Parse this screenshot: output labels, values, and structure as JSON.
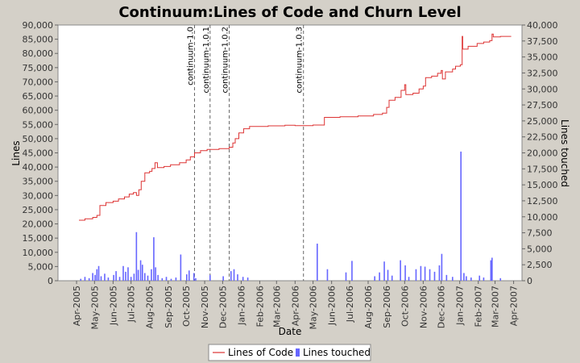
{
  "chart_data": {
    "type": "line+bar",
    "title": "Continuum:Lines of Code and Churn Level",
    "xlabel": "Date",
    "ylabel_left": "Lines",
    "ylabel_right": "Lines touched",
    "x_range": [
      "2005-03-01",
      "2007-04-15"
    ],
    "ylim_left": [
      0,
      90000
    ],
    "ylim_right": [
      0,
      40000
    ],
    "yticks_left": [
      "0",
      "5,000",
      "10,000",
      "15,000",
      "20,000",
      "25,000",
      "30,000",
      "35,000",
      "40,000",
      "45,000",
      "50,000",
      "55,000",
      "60,000",
      "65,000",
      "70,000",
      "75,000",
      "80,000",
      "85,000",
      "90,000"
    ],
    "yticks_right": [
      "0",
      "2,500",
      "5,000",
      "7,500",
      "10,000",
      "12,500",
      "15,000",
      "17,500",
      "20,000",
      "22,500",
      "25,000",
      "27,500",
      "30,000",
      "32,500",
      "35,000",
      "37,500",
      "40,000"
    ],
    "xticks": [
      {
        "date": "2005-04-01",
        "label": "Apr-2005"
      },
      {
        "date": "2005-05-01",
        "label": "May-2005"
      },
      {
        "date": "2005-06-01",
        "label": "Jun-2005"
      },
      {
        "date": "2005-07-01",
        "label": "Jul-2005"
      },
      {
        "date": "2005-08-01",
        "label": "Aug-2005"
      },
      {
        "date": "2005-09-01",
        "label": "Sep-2005"
      },
      {
        "date": "2005-10-01",
        "label": "Oct-2005"
      },
      {
        "date": "2005-11-01",
        "label": "Nov-2005"
      },
      {
        "date": "2005-12-01",
        "label": "Dec-2005"
      },
      {
        "date": "2006-01-01",
        "label": "Jan-2006"
      },
      {
        "date": "2006-02-01",
        "label": "Feb-2006"
      },
      {
        "date": "2006-03-01",
        "label": "Mar-2006"
      },
      {
        "date": "2006-04-01",
        "label": "Apr-2006"
      },
      {
        "date": "2006-05-01",
        "label": "May-2006"
      },
      {
        "date": "2006-06-01",
        "label": "Jun-2006"
      },
      {
        "date": "2006-07-01",
        "label": "Jul-2006"
      },
      {
        "date": "2006-08-01",
        "label": "Aug-2006"
      },
      {
        "date": "2006-09-01",
        "label": "Sep-2006"
      },
      {
        "date": "2006-10-01",
        "label": "Oct-2006"
      },
      {
        "date": "2006-11-01",
        "label": "Nov-2006"
      },
      {
        "date": "2006-12-01",
        "label": "Dec-2006"
      },
      {
        "date": "2007-01-01",
        "label": "Jan-2007"
      },
      {
        "date": "2007-02-01",
        "label": "Feb-2007"
      },
      {
        "date": "2007-03-01",
        "label": "Mar-2007"
      },
      {
        "date": "2007-04-01",
        "label": "Apr-2007"
      }
    ],
    "releases": [
      {
        "date": "2005-10-15",
        "label": "continuum-1.0"
      },
      {
        "date": "2005-11-10",
        "label": "continuum-1.0.1"
      },
      {
        "date": "2005-12-12",
        "label": "continuum-1.0.2"
      },
      {
        "date": "2006-04-15",
        "label": "continuum-1.0.3"
      }
    ],
    "series": [
      {
        "name": "Lines of Code",
        "type": "step-line",
        "color": "#dd3333",
        "points": [
          [
            "2005-04-05",
            21300
          ],
          [
            "2005-04-15",
            21800
          ],
          [
            "2005-04-28",
            22300
          ],
          [
            "2005-05-05",
            23000
          ],
          [
            "2005-05-10",
            26500
          ],
          [
            "2005-05-20",
            27500
          ],
          [
            "2005-06-01",
            28000
          ],
          [
            "2005-06-10",
            28800
          ],
          [
            "2005-06-20",
            29500
          ],
          [
            "2005-06-28",
            30500
          ],
          [
            "2005-07-05",
            31000
          ],
          [
            "2005-07-10",
            30000
          ],
          [
            "2005-07-14",
            32000
          ],
          [
            "2005-07-18",
            35000
          ],
          [
            "2005-07-24",
            38000
          ],
          [
            "2005-08-01",
            38500
          ],
          [
            "2005-08-05",
            39500
          ],
          [
            "2005-08-10",
            41500
          ],
          [
            "2005-08-14",
            39800
          ],
          [
            "2005-08-25",
            40200
          ],
          [
            "2005-09-05",
            40800
          ],
          [
            "2005-09-20",
            41500
          ],
          [
            "2005-10-01",
            42500
          ],
          [
            "2005-10-08",
            43600
          ],
          [
            "2005-10-15",
            45000
          ],
          [
            "2005-10-25",
            45800
          ],
          [
            "2005-11-05",
            46200
          ],
          [
            "2005-11-25",
            46500
          ],
          [
            "2005-12-12",
            47000
          ],
          [
            "2005-12-18",
            48500
          ],
          [
            "2005-12-22",
            50000
          ],
          [
            "2005-12-28",
            52000
          ],
          [
            "2006-01-05",
            53500
          ],
          [
            "2006-01-15",
            54300
          ],
          [
            "2006-02-15",
            54500
          ],
          [
            "2006-03-15",
            54700
          ],
          [
            "2006-04-01",
            54600
          ],
          [
            "2006-05-01",
            54800
          ],
          [
            "2006-05-20",
            57500
          ],
          [
            "2006-06-15",
            57700
          ],
          [
            "2006-07-15",
            58000
          ],
          [
            "2006-08-10",
            58500
          ],
          [
            "2006-08-25",
            59000
          ],
          [
            "2006-09-01",
            61000
          ],
          [
            "2006-09-05",
            63500
          ],
          [
            "2006-09-15",
            64500
          ],
          [
            "2006-09-25",
            67000
          ],
          [
            "2006-10-01",
            69000
          ],
          [
            "2006-10-03",
            65500
          ],
          [
            "2006-10-15",
            66000
          ],
          [
            "2006-10-25",
            67500
          ],
          [
            "2006-11-01",
            68500
          ],
          [
            "2006-11-05",
            71500
          ],
          [
            "2006-11-15",
            72000
          ],
          [
            "2006-11-25",
            73000
          ],
          [
            "2006-12-01",
            74000
          ],
          [
            "2006-12-03",
            71000
          ],
          [
            "2006-12-08",
            73500
          ],
          [
            "2006-12-20",
            74500
          ],
          [
            "2006-12-25",
            75500
          ],
          [
            "2007-01-02",
            76000
          ],
          [
            "2007-01-05",
            86000
          ],
          [
            "2007-01-06",
            81500
          ],
          [
            "2007-01-15",
            82500
          ],
          [
            "2007-01-30",
            83500
          ],
          [
            "2007-02-10",
            84000
          ],
          [
            "2007-02-20",
            84500
          ],
          [
            "2007-02-24",
            86800
          ],
          [
            "2007-02-26",
            85800
          ],
          [
            "2007-03-10",
            86000
          ],
          [
            "2007-03-28",
            86000
          ]
        ]
      },
      {
        "name": "Lines touched",
        "type": "bar",
        "color": "#6666ff",
        "points": [
          [
            "2005-04-08",
            300
          ],
          [
            "2005-04-15",
            600
          ],
          [
            "2005-04-22",
            400
          ],
          [
            "2005-04-28",
            1200
          ],
          [
            "2005-05-02",
            900
          ],
          [
            "2005-05-05",
            1800
          ],
          [
            "2005-05-08",
            2300
          ],
          [
            "2005-05-12",
            700
          ],
          [
            "2005-05-18",
            1100
          ],
          [
            "2005-05-24",
            500
          ],
          [
            "2005-06-02",
            900
          ],
          [
            "2005-06-06",
            1500
          ],
          [
            "2005-06-12",
            600
          ],
          [
            "2005-06-18",
            2300
          ],
          [
            "2005-06-22",
            1400
          ],
          [
            "2005-06-26",
            2100
          ],
          [
            "2005-07-01",
            600
          ],
          [
            "2005-07-06",
            1100
          ],
          [
            "2005-07-10",
            7600
          ],
          [
            "2005-07-13",
            1700
          ],
          [
            "2005-07-17",
            3200
          ],
          [
            "2005-07-20",
            2500
          ],
          [
            "2005-07-24",
            1200
          ],
          [
            "2005-07-29",
            800
          ],
          [
            "2005-08-04",
            1800
          ],
          [
            "2005-08-08",
            6800
          ],
          [
            "2005-08-11",
            2100
          ],
          [
            "2005-08-15",
            900
          ],
          [
            "2005-08-22",
            400
          ],
          [
            "2005-08-29",
            600
          ],
          [
            "2005-09-06",
            300
          ],
          [
            "2005-09-14",
            500
          ],
          [
            "2005-09-22",
            4100
          ],
          [
            "2005-10-02",
            1000
          ],
          [
            "2005-10-06",
            1600
          ],
          [
            "2005-10-14",
            1200
          ],
          [
            "2005-10-17",
            400
          ],
          [
            "2005-11-10",
            900
          ],
          [
            "2005-12-02",
            700
          ],
          [
            "2005-12-15",
            1500
          ],
          [
            "2005-12-20",
            1800
          ],
          [
            "2005-12-26",
            1000
          ],
          [
            "2006-01-04",
            600
          ],
          [
            "2006-01-12",
            500
          ],
          [
            "2006-05-08",
            5800
          ],
          [
            "2006-05-25",
            1800
          ],
          [
            "2006-06-25",
            1300
          ],
          [
            "2006-07-05",
            3100
          ],
          [
            "2006-08-12",
            700
          ],
          [
            "2006-08-20",
            1300
          ],
          [
            "2006-08-28",
            3000
          ],
          [
            "2006-09-03",
            1700
          ],
          [
            "2006-09-10",
            800
          ],
          [
            "2006-09-24",
            3200
          ],
          [
            "2006-10-02",
            2400
          ],
          [
            "2006-10-08",
            600
          ],
          [
            "2006-10-20",
            1800
          ],
          [
            "2006-10-28",
            2300
          ],
          [
            "2006-11-04",
            2200
          ],
          [
            "2006-11-12",
            1800
          ],
          [
            "2006-11-20",
            1400
          ],
          [
            "2006-11-28",
            2400
          ],
          [
            "2006-12-02",
            4200
          ],
          [
            "2006-12-10",
            900
          ],
          [
            "2006-12-20",
            600
          ],
          [
            "2007-01-03",
            20200
          ],
          [
            "2007-01-08",
            1200
          ],
          [
            "2007-01-12",
            700
          ],
          [
            "2007-01-20",
            500
          ],
          [
            "2007-02-03",
            800
          ],
          [
            "2007-02-10",
            500
          ],
          [
            "2007-02-22",
            3200
          ],
          [
            "2007-02-24",
            3600
          ],
          [
            "2007-03-10",
            400
          ]
        ]
      }
    ],
    "legend": {
      "position": "bottom",
      "entries": [
        "Lines of Code",
        "Lines touched"
      ]
    },
    "grid": false
  }
}
